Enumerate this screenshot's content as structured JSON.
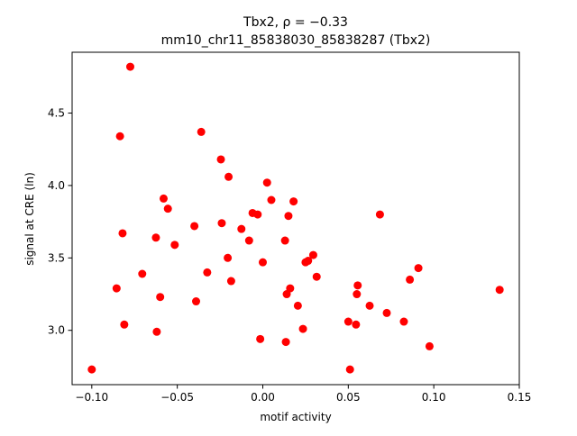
{
  "chart_data": {
    "type": "scatter",
    "title_line1": "Tbx2, ρ = −0.33",
    "title_line2": "mm10_chr11_85838030_85838287 (Tbx2)",
    "xlabel": "motif activity",
    "ylabel": "signal at CRE (ln)",
    "xlim": [
      -0.1115,
      0.15
    ],
    "ylim": [
      2.625,
      4.92
    ],
    "xticks": [
      -0.1,
      -0.05,
      0.0,
      0.05,
      0.1,
      0.15
    ],
    "xtick_labels": [
      "−0.10",
      "−0.05",
      "0.00",
      "0.05",
      "0.10",
      "0.15"
    ],
    "yticks": [
      3.0,
      3.5,
      4.0,
      4.5
    ],
    "ytick_labels": [
      "3.0",
      "3.5",
      "4.0",
      "4.5"
    ],
    "grid": false,
    "marker_color": "#ff0000",
    "points": [
      {
        "x": -0.1,
        "y": 2.73
      },
      {
        "x": -0.0855,
        "y": 3.29
      },
      {
        "x": -0.0835,
        "y": 4.34
      },
      {
        "x": -0.082,
        "y": 3.67
      },
      {
        "x": -0.081,
        "y": 3.04
      },
      {
        "x": -0.0775,
        "y": 4.82
      },
      {
        "x": -0.0705,
        "y": 3.39
      },
      {
        "x": -0.0625,
        "y": 3.64
      },
      {
        "x": -0.062,
        "y": 2.99
      },
      {
        "x": -0.06,
        "y": 3.23
      },
      {
        "x": -0.058,
        "y": 3.91
      },
      {
        "x": -0.0555,
        "y": 3.84
      },
      {
        "x": -0.0515,
        "y": 3.59
      },
      {
        "x": -0.04,
        "y": 3.72
      },
      {
        "x": -0.039,
        "y": 3.2
      },
      {
        "x": -0.036,
        "y": 4.37
      },
      {
        "x": -0.0325,
        "y": 3.4
      },
      {
        "x": -0.0245,
        "y": 4.18
      },
      {
        "x": -0.024,
        "y": 3.74
      },
      {
        "x": -0.0205,
        "y": 3.5
      },
      {
        "x": -0.02,
        "y": 4.06
      },
      {
        "x": -0.0185,
        "y": 3.34
      },
      {
        "x": -0.0125,
        "y": 3.7
      },
      {
        "x": -0.008,
        "y": 3.62
      },
      {
        "x": -0.006,
        "y": 3.81
      },
      {
        "x": -0.003,
        "y": 3.8
      },
      {
        "x": -0.0015,
        "y": 2.94
      },
      {
        "x": 0.0,
        "y": 3.47
      },
      {
        "x": 0.0025,
        "y": 4.02
      },
      {
        "x": 0.005,
        "y": 3.9
      },
      {
        "x": 0.013,
        "y": 3.62
      },
      {
        "x": 0.0135,
        "y": 2.92
      },
      {
        "x": 0.014,
        "y": 3.25
      },
      {
        "x": 0.015,
        "y": 3.79
      },
      {
        "x": 0.016,
        "y": 3.29
      },
      {
        "x": 0.018,
        "y": 3.89
      },
      {
        "x": 0.0205,
        "y": 3.17
      },
      {
        "x": 0.0235,
        "y": 3.01
      },
      {
        "x": 0.025,
        "y": 3.47
      },
      {
        "x": 0.0265,
        "y": 3.48
      },
      {
        "x": 0.0295,
        "y": 3.52
      },
      {
        "x": 0.0315,
        "y": 3.37
      },
      {
        "x": 0.05,
        "y": 3.06
      },
      {
        "x": 0.051,
        "y": 2.73
      },
      {
        "x": 0.0545,
        "y": 3.04
      },
      {
        "x": 0.055,
        "y": 3.25
      },
      {
        "x": 0.0555,
        "y": 3.31
      },
      {
        "x": 0.0625,
        "y": 3.17
      },
      {
        "x": 0.0685,
        "y": 3.8
      },
      {
        "x": 0.0725,
        "y": 3.12
      },
      {
        "x": 0.0825,
        "y": 3.06
      },
      {
        "x": 0.086,
        "y": 3.35
      },
      {
        "x": 0.091,
        "y": 3.43
      },
      {
        "x": 0.0975,
        "y": 2.89
      },
      {
        "x": 0.1385,
        "y": 3.28
      }
    ]
  }
}
